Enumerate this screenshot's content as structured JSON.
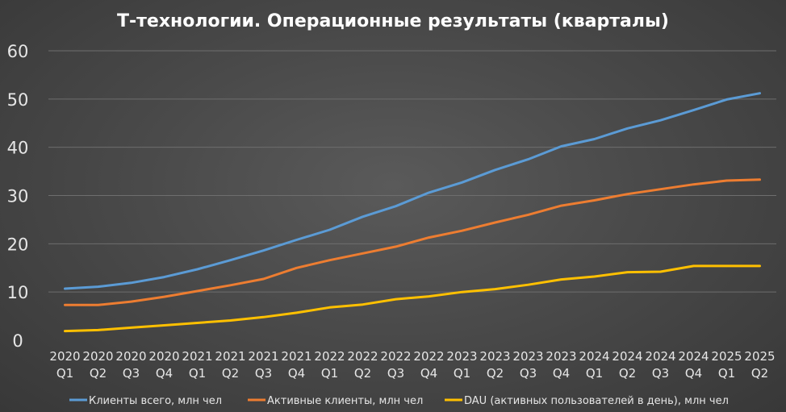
{
  "chart_data": {
    "type": "line",
    "title": "Т-технологии. Операционные результаты (кварталы)",
    "categories": [
      "2020 Q1",
      "2020 Q2",
      "2020 Q3",
      "2020 Q4",
      "2021 Q1",
      "2021 Q2",
      "2021 Q3",
      "2021 Q4",
      "2022 Q1",
      "2022 Q2",
      "2022 Q3",
      "2022 Q4",
      "2023 Q1",
      "2023 Q2",
      "2023 Q3",
      "2023 Q4",
      "2024 Q1",
      "2024 Q2",
      "2024 Q3",
      "2024 Q4",
      "2025 Q1",
      "2025 Q2"
    ],
    "ylim": [
      0,
      60
    ],
    "yticks": [
      0,
      10,
      20,
      30,
      40,
      50,
      60
    ],
    "grid": true,
    "legend_position": "bottom",
    "series": [
      {
        "name": "Клиенты всего, млн чел",
        "color": "#5b9bd5",
        "values": [
          10.7,
          11.1,
          11.9,
          13.1,
          14.7,
          16.6,
          18.6,
          20.8,
          22.9,
          25.6,
          27.8,
          30.6,
          32.7,
          35.3,
          37.5,
          40.2,
          41.7,
          43.9,
          45.6,
          47.7,
          49.9,
          51.2
        ]
      },
      {
        "name": "Активные клиенты, млн чел",
        "color": "#ed7d31",
        "values": [
          7.3,
          7.3,
          8.0,
          9.0,
          10.2,
          11.4,
          12.7,
          15.0,
          16.6,
          18.0,
          19.4,
          21.3,
          22.7,
          24.4,
          26.0,
          27.9,
          29.0,
          30.3,
          31.3,
          32.3,
          33.1,
          33.3
        ]
      },
      {
        "name": "DAU (активных пользователей в день), млн чел",
        "color": "#ffc000",
        "values": [
          1.9,
          2.1,
          2.6,
          3.1,
          3.6,
          4.1,
          4.8,
          5.7,
          6.8,
          7.4,
          8.5,
          9.1,
          10.0,
          10.6,
          11.5,
          12.6,
          13.2,
          14.1,
          14.2,
          15.4,
          15.4,
          15.4
        ]
      }
    ]
  }
}
